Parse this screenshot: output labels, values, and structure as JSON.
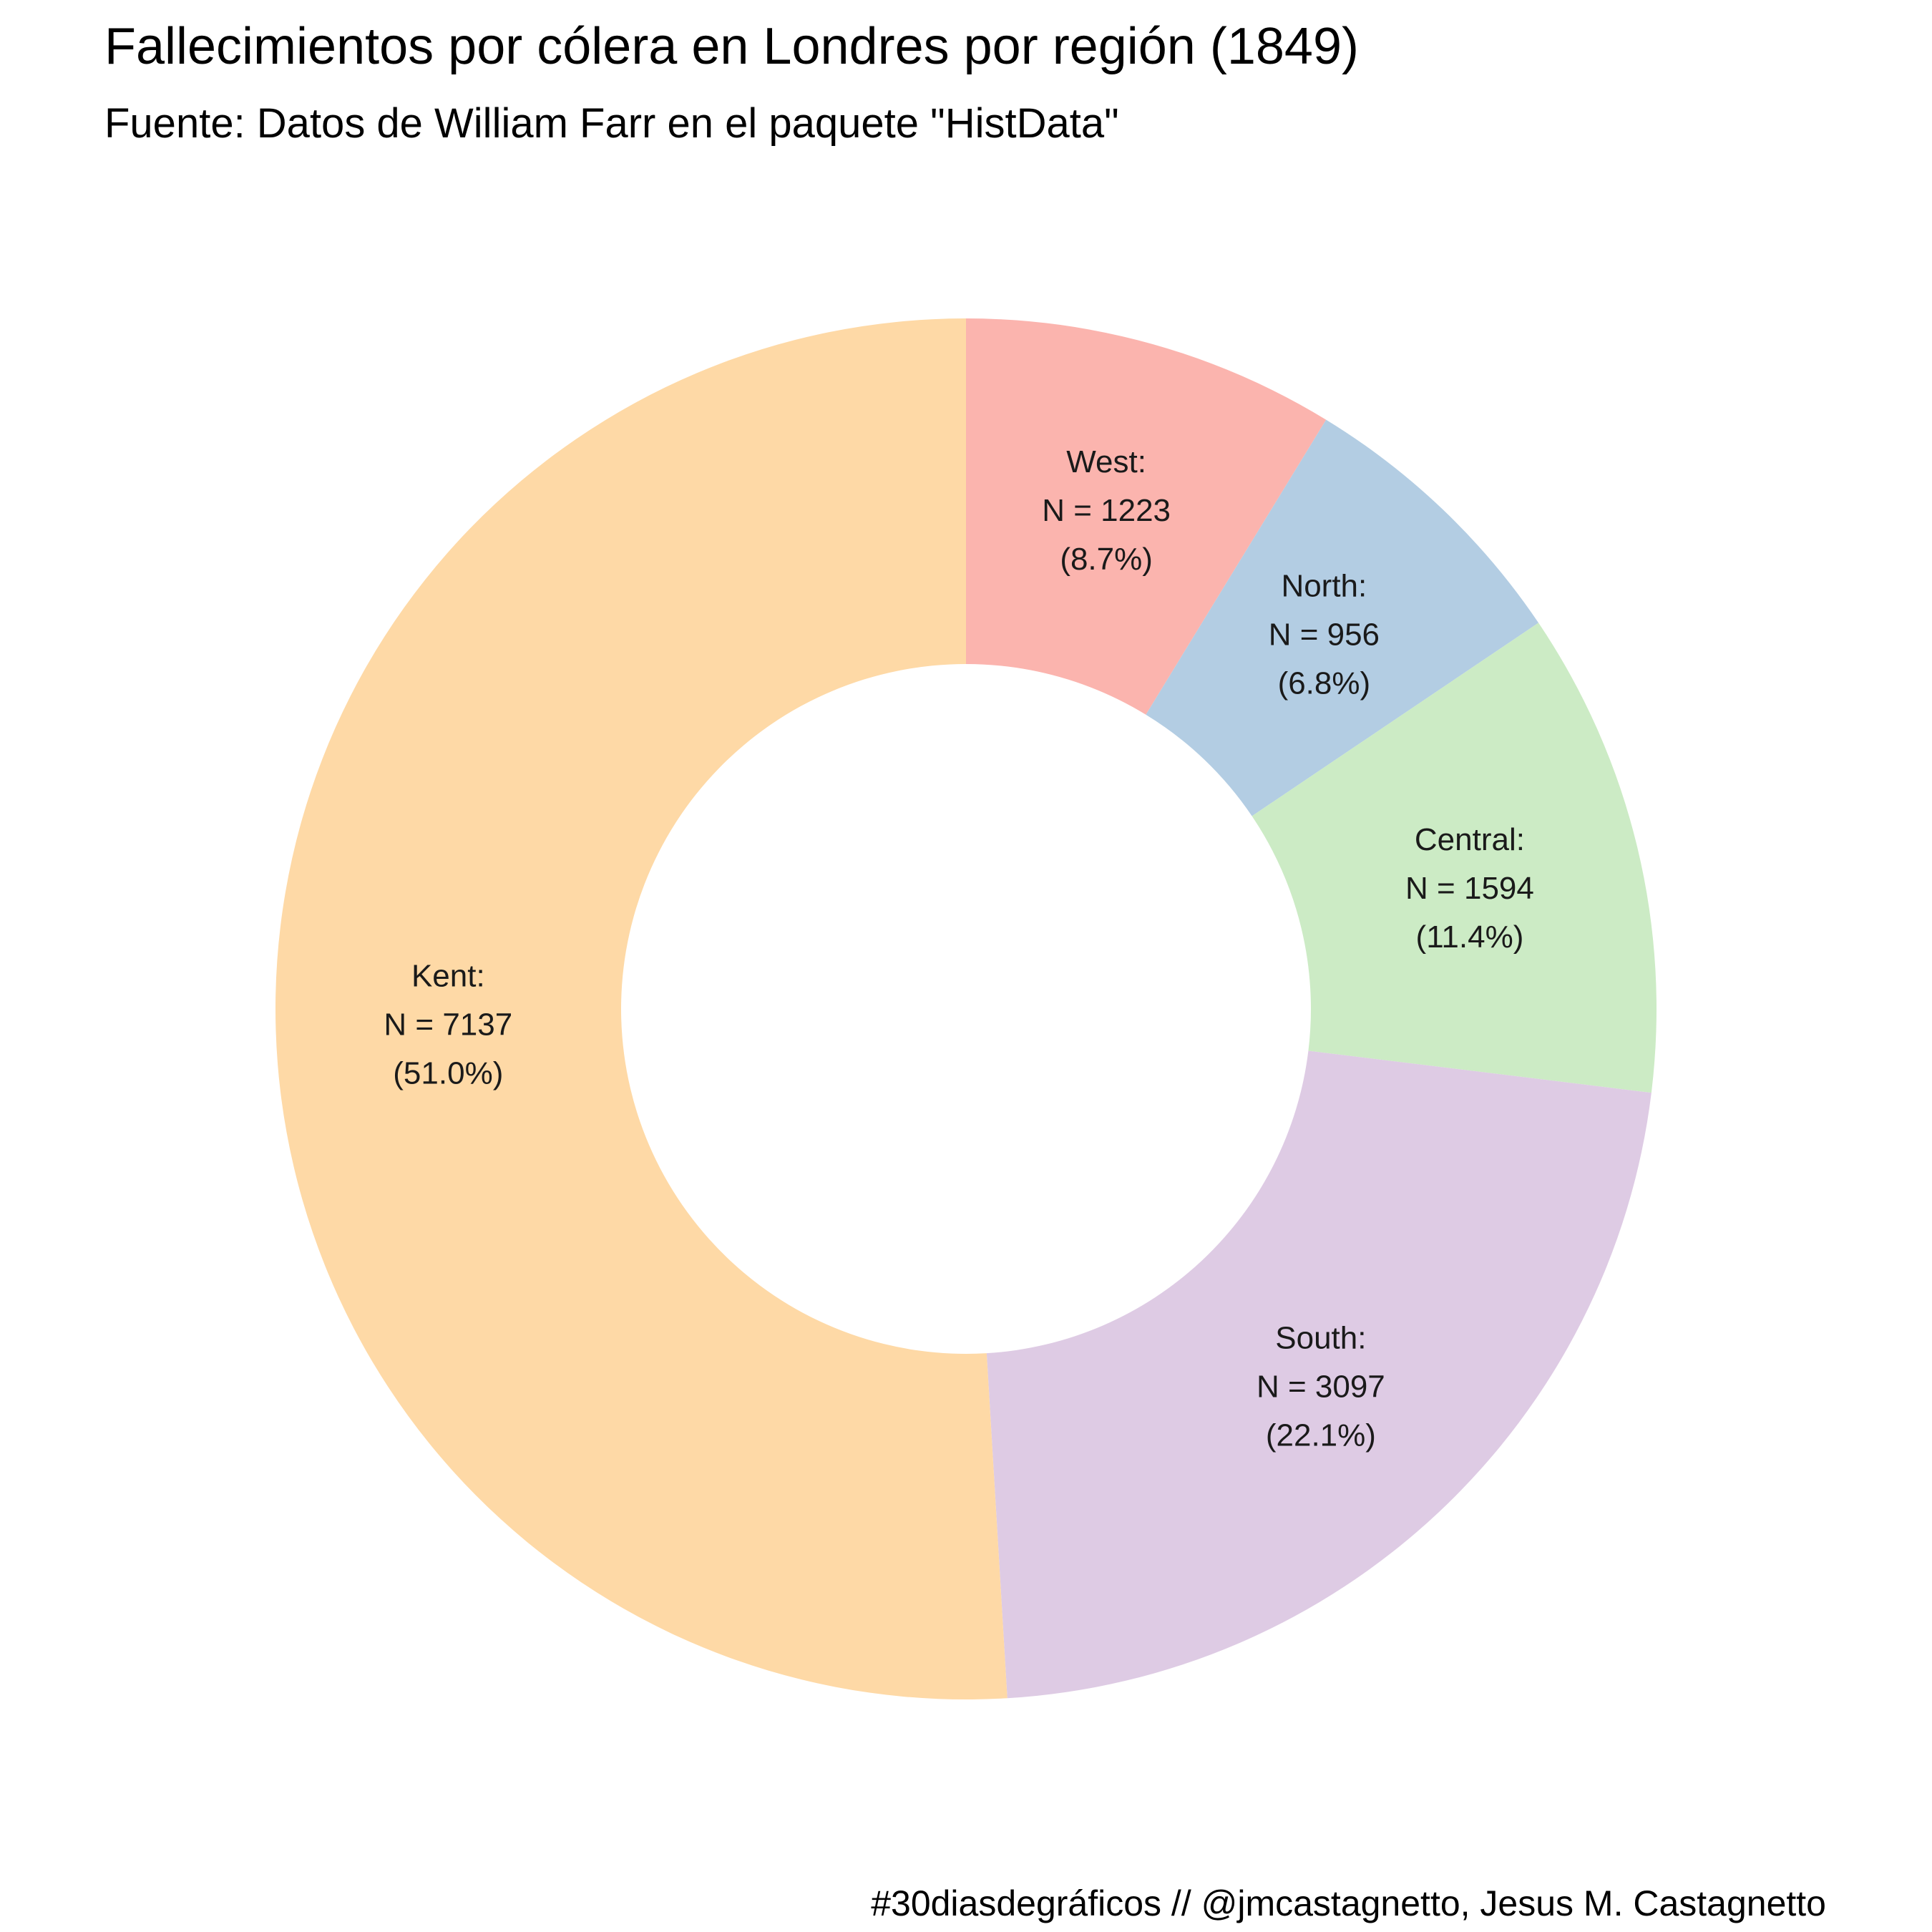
{
  "chart_data": {
    "type": "pie",
    "variant": "donut",
    "title": "Fallecimientos por cólera en Londres por región (1849)",
    "subtitle": "Fuente: Datos de William Farr en el paquete \"HistData\"",
    "caption": "#30diasdegráficos // @jmcastagnetto, Jesus M. Castagnetto",
    "legend": "none",
    "slices": [
      {
        "name": "West",
        "value": 1223,
        "percent": "8.7%",
        "color": "#FBB4AE",
        "label_lines": [
          "West:",
          "N = 1223",
          "(8.7%)"
        ]
      },
      {
        "name": "North",
        "value": 956,
        "percent": "6.8%",
        "color": "#B3CDE3",
        "label_lines": [
          "North:",
          "N = 956",
          "(6.8%)"
        ]
      },
      {
        "name": "Central",
        "value": 1594,
        "percent": "11.4%",
        "color": "#CCEBC5",
        "label_lines": [
          "Central:",
          "N = 1594",
          "(11.4%)"
        ]
      },
      {
        "name": "South",
        "value": 3097,
        "percent": "22.1%",
        "color": "#DECBE4",
        "label_lines": [
          "South:",
          "N = 3097",
          "(22.1%)"
        ]
      },
      {
        "name": "Kent",
        "value": 7137,
        "percent": "51.0%",
        "color": "#FED9A6",
        "label_lines": [
          "Kent:",
          "N = 7137",
          "(51.0%)"
        ]
      }
    ]
  }
}
